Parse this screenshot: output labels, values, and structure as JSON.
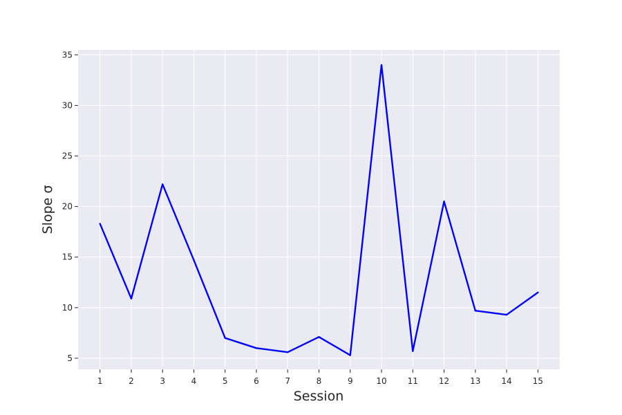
{
  "chart_data": {
    "type": "line",
    "xlabel": "Session",
    "ylabel": "Slope σ",
    "x": [
      1,
      2,
      3,
      4,
      5,
      6,
      7,
      8,
      9,
      10,
      11,
      12,
      13,
      14,
      15
    ],
    "xlim": [
      0.3,
      15.7
    ],
    "ylim": [
      3.9,
      35.5
    ],
    "xticks": [
      1,
      2,
      3,
      4,
      5,
      6,
      7,
      8,
      9,
      10,
      11,
      12,
      13,
      14,
      15
    ],
    "yticks": [
      5,
      10,
      15,
      20,
      25,
      30,
      35
    ],
    "grid": true,
    "series": [
      {
        "values": [
          18.3,
          10.9,
          22.2,
          14.7,
          7.0,
          6.0,
          5.6,
          7.1,
          5.3,
          34.0,
          5.7,
          20.5,
          9.7,
          9.3,
          11.5
        ],
        "color": "#0000ff"
      }
    ],
    "colors": {
      "plot_background": "#eaeaf2",
      "grid": "#ffffff",
      "text": "#262626"
    }
  }
}
